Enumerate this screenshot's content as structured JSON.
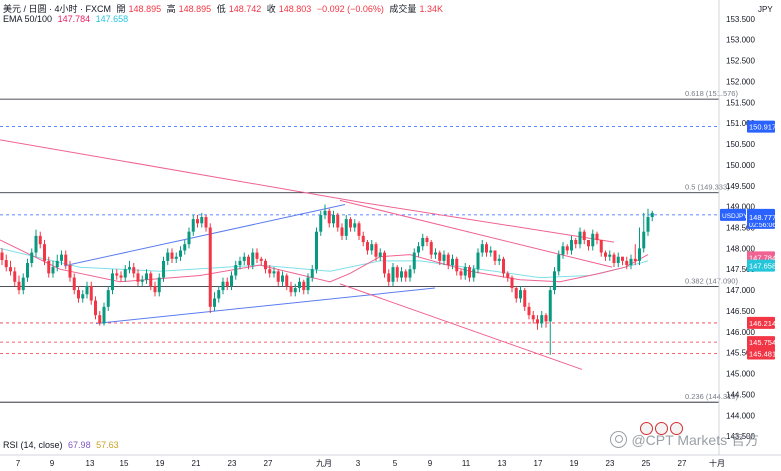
{
  "header": {
    "symbol": "美元 / 日圆 · 4小时 · FXCM",
    "open_label": "開",
    "open": "148.895",
    "high_label": "高",
    "high": "148.895",
    "low_label": "低",
    "low": "148.742",
    "close_label": "收",
    "close": "148.803",
    "change": "−0.092 (−0.06%)",
    "volume_label": "成交量",
    "volume": "1.34K",
    "ema_label": "EMA 50/100",
    "ema50": "147.784",
    "ema100": "147.658",
    "rsi_label": "RSI (14, close)",
    "rsi": "67.98",
    "rsi_ma": "57.63"
  },
  "watermark": "@CPT Markets 官方",
  "colors": {
    "up": "#089981",
    "down": "#f23645",
    "ema50": "#f06292",
    "ema100": "#80deea",
    "trend_blue": "#5b7cf0",
    "trend_red": "#f06292",
    "fib": "#131722",
    "dashed_blue": "#2962ff",
    "dashed_red": "#f23645"
  },
  "chart_data": {
    "type": "candlestick",
    "interval": "4h",
    "y_unit": "JPY",
    "ylim": [
      143.05,
      153.95
    ],
    "yticks": [
      "153.500",
      "153.000",
      "152.500",
      "152.000",
      "151.500",
      "151.000",
      "150.500",
      "150.000",
      "149.500",
      "149.000",
      "148.500",
      "148.000",
      "147.500",
      "147.000",
      "146.500",
      "146.000",
      "145.500",
      "145.000",
      "144.500",
      "144.000",
      "143.500"
    ],
    "xticks": [
      "7",
      "9",
      "13",
      "15",
      "19",
      "21",
      "23",
      "27",
      "九月",
      "3",
      "5",
      "9",
      "11",
      "13",
      "17",
      "19",
      "23",
      "25",
      "27",
      "十月"
    ],
    "fib_levels": [
      {
        "label": "0.618 (151.576)",
        "value": 151.576
      },
      {
        "label": "0.5 (149.333)",
        "value": 149.333
      },
      {
        "label": "0.382 (147.090)",
        "value": 147.09
      },
      {
        "label": "0.236 (144.315)",
        "value": 144.315
      }
    ],
    "dashed_levels": [
      {
        "value": 150.917,
        "label": "150.917",
        "kind": "blue"
      },
      {
        "value": 148.803,
        "label": "148.803",
        "kind": "pair",
        "symbol": "USDJPY",
        "timer": "02:56:06"
      },
      {
        "value": 146.214,
        "label": "146.214",
        "kind": "red"
      },
      {
        "value": 145.754,
        "label": "145.754",
        "kind": "red"
      },
      {
        "value": 145.481,
        "label": "145.481",
        "kind": "red"
      }
    ],
    "price_labels": [
      {
        "value": 148.777,
        "label": "148.777",
        "color": "#2962ff"
      },
      {
        "value": 147.784,
        "label": "147.784",
        "color": "#f06292"
      },
      {
        "value": 147.658,
        "label": "147.658",
        "color": "#26c6da"
      }
    ],
    "trendlines": [
      {
        "color": "blue",
        "points": [
          [
            64,
            147.58
          ],
          [
            345,
            149.05
          ]
        ]
      },
      {
        "color": "blue",
        "points": [
          [
            96,
            146.2
          ],
          [
            435,
            147.05
          ]
        ]
      },
      {
        "color": "red",
        "points": [
          [
            0,
            150.6
          ],
          [
            362,
            149.1
          ]
        ]
      },
      {
        "color": "red",
        "points": [
          [
            362,
            149.1
          ],
          [
            614,
            148.15
          ]
        ]
      },
      {
        "color": "red",
        "points": [
          [
            340,
            149.15
          ],
          [
            612,
            147.55
          ]
        ]
      },
      {
        "color": "red",
        "points": [
          [
            340,
            147.15
          ],
          [
            582,
            145.1
          ]
        ]
      }
    ],
    "candles": {
      "start_slot": 0,
      "o": [
        147.9,
        147.72,
        147.55,
        147.45,
        147.2,
        147.0,
        147.3,
        147.65,
        147.9,
        148.3,
        148.1,
        147.7,
        147.4,
        147.55,
        147.7,
        147.85,
        147.6,
        147.3,
        147.0,
        146.8,
        146.9,
        147.1,
        146.75,
        146.4,
        146.2,
        146.6,
        147.0,
        147.4,
        147.35,
        147.3,
        147.5,
        147.55,
        147.4,
        147.2,
        147.25,
        147.4,
        147.1,
        146.95,
        147.3,
        147.7,
        147.9,
        147.75,
        147.8,
        147.95,
        148.1,
        148.4,
        148.7,
        148.6,
        148.75,
        148.5,
        146.6,
        146.8,
        147.0,
        147.2,
        147.1,
        147.35,
        147.6,
        147.7,
        147.8,
        147.6,
        147.9,
        147.75,
        147.7,
        147.5,
        147.4,
        147.45,
        147.2,
        147.35,
        147.1,
        146.95,
        147.05,
        147.2,
        147.0,
        147.3,
        147.5,
        148.4,
        148.8,
        148.9,
        148.6,
        148.8,
        148.5,
        148.3,
        148.7,
        148.5,
        148.6,
        148.3,
        148.15,
        147.95,
        148.1,
        147.8,
        147.9,
        147.4,
        147.2,
        147.55,
        147.3,
        147.45,
        147.3,
        147.5,
        147.9,
        148.05,
        148.25,
        148.15,
        147.85,
        147.9,
        147.7,
        147.85,
        147.6,
        147.75,
        147.45,
        147.35,
        147.55,
        147.3,
        147.5,
        147.9,
        148.1,
        147.9,
        147.95,
        147.7,
        147.75,
        147.4,
        147.3,
        147.05,
        146.8,
        147.0,
        146.6,
        146.4,
        146.3,
        146.2,
        146.4,
        146.25,
        147.0,
        147.45,
        147.85,
        148.05,
        147.95,
        148.2,
        148.1,
        148.4,
        148.2,
        148.05,
        148.35,
        148.2,
        147.9,
        147.8,
        147.85,
        147.65,
        147.8,
        147.7,
        147.6,
        147.75,
        147.7,
        148.0,
        148.4,
        148.75,
        148.85
      ],
      "c": [
        147.72,
        147.55,
        147.45,
        147.2,
        147.0,
        147.3,
        147.65,
        147.9,
        148.3,
        148.1,
        147.7,
        147.4,
        147.55,
        147.7,
        147.85,
        147.6,
        147.3,
        147.0,
        146.8,
        146.9,
        147.1,
        146.75,
        146.4,
        146.2,
        146.6,
        147.0,
        147.4,
        147.35,
        147.3,
        147.5,
        147.55,
        147.4,
        147.2,
        147.25,
        147.4,
        147.1,
        146.95,
        147.3,
        147.7,
        147.9,
        147.75,
        147.8,
        147.95,
        148.1,
        148.4,
        148.7,
        148.6,
        148.75,
        148.5,
        146.6,
        146.8,
        147.0,
        147.2,
        147.1,
        147.35,
        147.6,
        147.7,
        147.8,
        147.6,
        147.9,
        147.75,
        147.7,
        147.5,
        147.4,
        147.45,
        147.2,
        147.35,
        147.1,
        146.95,
        147.05,
        147.2,
        147.0,
        147.3,
        147.5,
        148.4,
        148.8,
        148.9,
        148.6,
        148.8,
        148.5,
        148.3,
        148.7,
        148.5,
        148.6,
        148.3,
        148.15,
        147.95,
        148.1,
        147.8,
        147.9,
        147.4,
        147.2,
        147.55,
        147.3,
        147.45,
        147.3,
        147.5,
        147.9,
        148.05,
        148.25,
        148.15,
        147.85,
        147.9,
        147.7,
        147.85,
        147.6,
        147.75,
        147.45,
        147.35,
        147.55,
        147.3,
        147.5,
        147.9,
        148.1,
        147.9,
        147.95,
        147.7,
        147.75,
        147.4,
        147.3,
        147.05,
        146.8,
        147.0,
        146.6,
        146.4,
        146.3,
        146.2,
        146.4,
        146.25,
        147.0,
        147.45,
        147.85,
        148.05,
        147.95,
        148.2,
        148.1,
        148.4,
        148.2,
        148.05,
        148.35,
        148.2,
        147.9,
        147.8,
        147.85,
        147.65,
        147.8,
        147.7,
        147.6,
        147.75,
        147.7,
        148.0,
        148.4,
        148.75,
        148.85,
        148.803
      ],
      "h": [
        148.0,
        147.85,
        147.7,
        147.55,
        147.35,
        147.4,
        147.75,
        148.0,
        148.45,
        148.4,
        148.2,
        147.8,
        147.7,
        147.85,
        147.95,
        147.95,
        147.7,
        147.4,
        147.1,
        147.0,
        147.2,
        147.2,
        146.85,
        146.5,
        146.7,
        147.1,
        147.5,
        147.5,
        147.45,
        147.6,
        147.7,
        147.65,
        147.5,
        147.35,
        147.5,
        147.45,
        147.2,
        147.4,
        147.8,
        148.0,
        148.0,
        147.9,
        148.05,
        148.2,
        148.5,
        148.8,
        148.8,
        148.85,
        148.8,
        148.6,
        146.95,
        147.1,
        147.3,
        147.3,
        147.45,
        147.7,
        147.8,
        147.9,
        147.85,
        148.0,
        148.0,
        147.8,
        147.75,
        147.6,
        147.55,
        147.5,
        147.45,
        147.4,
        147.2,
        147.15,
        147.3,
        147.25,
        147.4,
        147.6,
        148.5,
        148.9,
        149.05,
        148.95,
        148.9,
        148.85,
        148.6,
        148.8,
        148.75,
        148.7,
        148.65,
        148.4,
        148.2,
        148.2,
        148.15,
        148.0,
        147.95,
        147.5,
        147.65,
        147.6,
        147.55,
        147.5,
        147.6,
        148.0,
        148.15,
        148.35,
        148.3,
        148.2,
        148.0,
        147.95,
        147.95,
        147.9,
        147.85,
        147.8,
        147.5,
        147.65,
        147.6,
        147.6,
        148.0,
        148.2,
        148.15,
        148.05,
        147.95,
        147.85,
        147.8,
        147.45,
        147.35,
        147.1,
        147.1,
        147.05,
        146.7,
        146.5,
        146.4,
        146.5,
        146.45,
        147.1,
        147.55,
        147.95,
        148.15,
        148.1,
        148.3,
        148.25,
        148.5,
        148.45,
        148.2,
        148.45,
        148.4,
        148.05,
        147.95,
        147.95,
        147.9,
        147.9,
        147.8,
        147.8,
        147.85,
        148.1,
        148.5,
        148.85,
        148.95,
        148.9
      ],
      "l": [
        147.6,
        147.45,
        147.35,
        147.1,
        146.9,
        146.9,
        147.2,
        147.55,
        147.8,
        148.0,
        147.6,
        147.3,
        147.3,
        147.45,
        147.6,
        147.5,
        147.2,
        146.9,
        146.7,
        146.7,
        146.8,
        146.65,
        146.3,
        146.15,
        146.15,
        146.5,
        146.9,
        147.25,
        147.2,
        147.2,
        147.4,
        147.3,
        147.1,
        147.1,
        147.15,
        147.0,
        146.85,
        146.85,
        147.2,
        147.6,
        147.65,
        147.65,
        147.7,
        147.85,
        148.0,
        148.3,
        148.5,
        148.5,
        148.4,
        146.45,
        146.5,
        146.7,
        146.9,
        147.0,
        147.0,
        147.25,
        147.5,
        147.6,
        147.5,
        147.5,
        147.65,
        147.6,
        147.4,
        147.3,
        147.3,
        147.1,
        147.1,
        147.0,
        146.85,
        146.85,
        146.95,
        146.9,
        146.9,
        147.2,
        147.4,
        148.3,
        148.7,
        148.5,
        148.5,
        148.4,
        148.2,
        148.2,
        148.4,
        148.4,
        148.2,
        148.05,
        147.85,
        147.85,
        147.7,
        147.7,
        147.3,
        147.1,
        147.1,
        147.2,
        147.2,
        147.2,
        147.2,
        147.4,
        147.8,
        147.95,
        148.05,
        147.75,
        147.75,
        147.6,
        147.6,
        147.5,
        147.5,
        147.35,
        147.25,
        147.25,
        147.2,
        147.2,
        147.4,
        147.8,
        147.8,
        147.8,
        147.6,
        147.6,
        147.3,
        147.2,
        146.95,
        146.7,
        146.7,
        146.5,
        146.3,
        146.2,
        146.05,
        146.1,
        146.1,
        145.45,
        146.9,
        147.35,
        147.75,
        147.85,
        147.85,
        148.0,
        148.0,
        148.1,
        147.95,
        147.95,
        148.1,
        147.8,
        147.7,
        147.7,
        147.55,
        147.55,
        147.6,
        147.5,
        147.5,
        147.6,
        147.6,
        147.9,
        148.3,
        148.65,
        148.72
      ],
      "note": "OHLC values estimated from the chart"
    },
    "ema50": [
      [
        0,
        148.2
      ],
      [
        60,
        147.5
      ],
      [
        120,
        147.2
      ],
      [
        200,
        147.35
      ],
      [
        260,
        147.6
      ],
      [
        330,
        147.2
      ],
      [
        350,
        147.4
      ],
      [
        380,
        147.8
      ],
      [
        410,
        147.85
      ],
      [
        470,
        147.45
      ],
      [
        520,
        147.25
      ],
      [
        560,
        147.2
      ],
      [
        600,
        147.4
      ],
      [
        625,
        147.55
      ],
      [
        648,
        147.85
      ]
    ],
    "ema100": [
      [
        0,
        148.0
      ],
      [
        80,
        147.55
      ],
      [
        160,
        147.45
      ],
      [
        260,
        147.6
      ],
      [
        330,
        147.45
      ],
      [
        380,
        147.7
      ],
      [
        420,
        147.7
      ],
      [
        480,
        147.5
      ],
      [
        540,
        147.3
      ],
      [
        590,
        147.35
      ],
      [
        625,
        147.55
      ],
      [
        648,
        147.7
      ]
    ]
  }
}
